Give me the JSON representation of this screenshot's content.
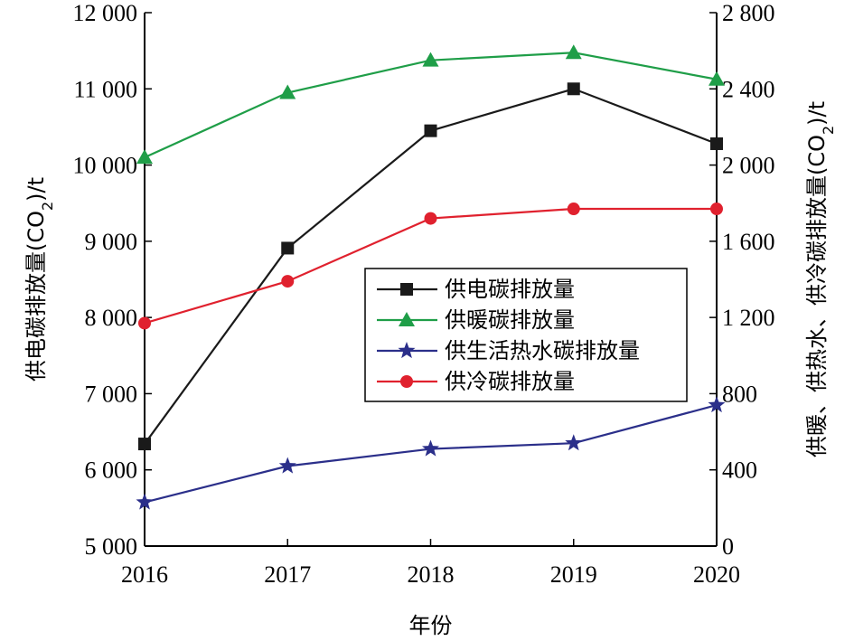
{
  "chart_data": {
    "type": "line",
    "title": "",
    "categories": [
      "2016",
      "2017",
      "2018",
      "2019",
      "2020"
    ],
    "xlabel": "年份",
    "ylabel_left": {
      "prefix": "供电碳排放量(CO",
      "sub": "2",
      "suffix": ")/t"
    },
    "ylabel_right": {
      "prefix": "供暖、供热水、供冷碳排放量(CO",
      "sub": "2",
      "suffix": ")/t"
    },
    "y_left": {
      "lim": [
        5000,
        12000
      ],
      "ticks": [
        5000,
        6000,
        7000,
        8000,
        9000,
        10000,
        11000,
        12000
      ],
      "tick_labels": [
        "5 000",
        "6 000",
        "7 000",
        "8 000",
        "9 000",
        "10 000",
        "11 000",
        "12 000"
      ]
    },
    "y_right": {
      "lim": [
        0,
        2800
      ],
      "ticks": [
        0,
        400,
        800,
        1200,
        1600,
        2000,
        2400,
        2800
      ],
      "tick_labels": [
        "0",
        "400",
        "800",
        "1 200",
        "1 600",
        "2 000",
        "2 400",
        "2 800"
      ]
    },
    "grid": false,
    "legend_position": "center-right",
    "series": [
      {
        "name": "供电碳排放量",
        "axis": "left",
        "color": "#1a1a1a",
        "marker": "square",
        "values": [
          6340,
          8910,
          10450,
          11000,
          10280
        ]
      },
      {
        "name": "供暖碳排放量",
        "axis": "right",
        "color": "#1f9e48",
        "marker": "triangle",
        "values": [
          2040,
          2380,
          2550,
          2590,
          2450
        ]
      },
      {
        "name": "供生活热水碳排放量",
        "axis": "right",
        "color": "#2b2f8a",
        "marker": "star",
        "values": [
          230,
          420,
          510,
          540,
          740
        ]
      },
      {
        "name": "供冷碳排放量",
        "axis": "right",
        "color": "#e0212e",
        "marker": "circle",
        "values": [
          1170,
          1390,
          1720,
          1770,
          1770
        ]
      }
    ]
  }
}
